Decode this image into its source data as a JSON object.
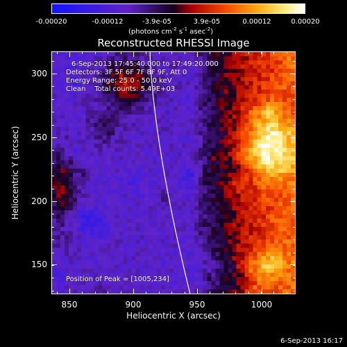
{
  "colorbar": {
    "tick_labels": [
      "-0.00020",
      "-0.00012",
      "-3.9e-05",
      "3.9e-05",
      "0.00012",
      "0.00020"
    ],
    "units_text": "(photons cm",
    "units_exp1": "-2",
    "units_mid": " s",
    "units_exp2": "-1",
    "units_mid2": " asec",
    "units_exp3": "-2",
    "units_end": ")"
  },
  "title": "Reconstructed RHESSI Image",
  "annotations": {
    "time_range": "6-Sep-2013 17:45:40.000 to 17:49:20.000",
    "detectors": "Detectors: 3F 5F 6F 7F 8F 9F, Att 0",
    "energy": "Energy Range: 25.0 - 50.0 keV",
    "clean": "Clean    Total counts: 5.49E+03",
    "peak": "Position of Peak = [1005,234]"
  },
  "axes": {
    "xlabel": "Heliocentric X (arcsec)",
    "ylabel": "Heliocentric Y (arcsec)",
    "x_ticks": [
      "850",
      "900",
      "950",
      "1000"
    ],
    "y_ticks": [
      "300",
      "250",
      "200",
      "150"
    ],
    "x_range": [
      836,
      1026
    ],
    "y_range": [
      124,
      314
    ]
  },
  "footer_date": "6-Sep-2013 16:17",
  "colors": {
    "limb_line": "#ffffff",
    "frame": "#ffffff"
  }
}
